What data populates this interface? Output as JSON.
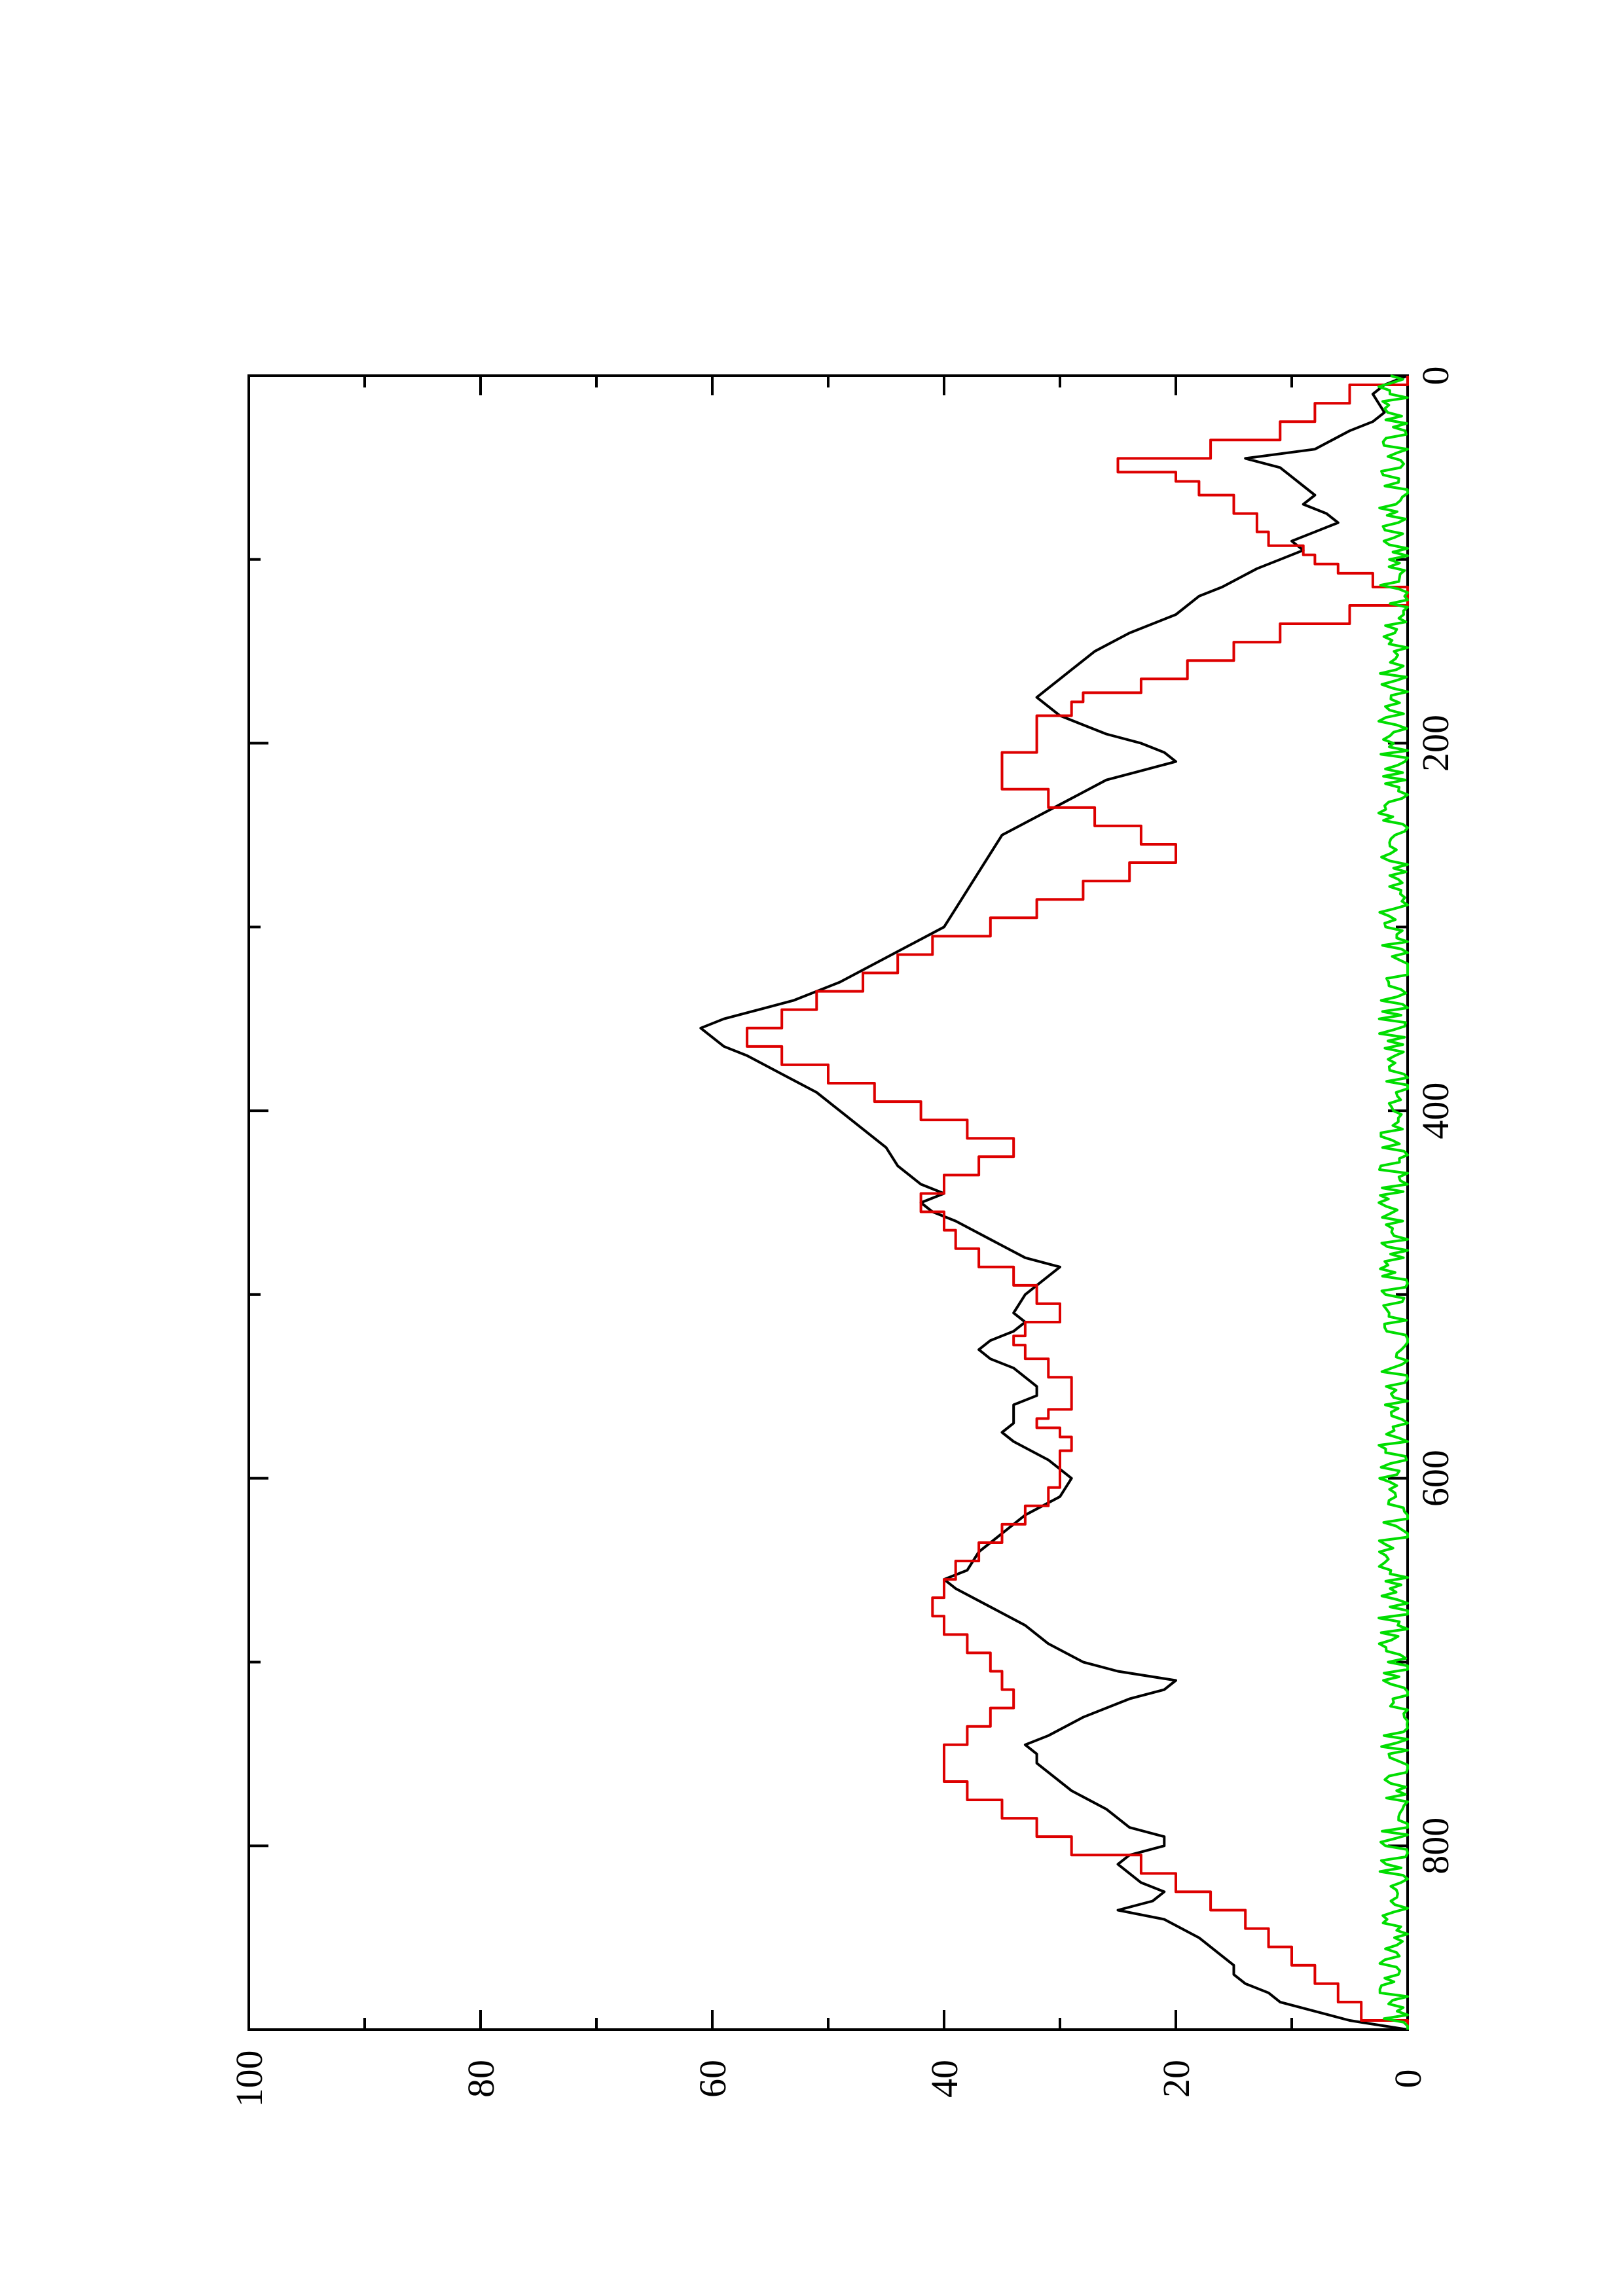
{
  "chart_data": {
    "type": "line",
    "orientation": "rotated-90-ccw",
    "title": "",
    "xlabel": "",
    "ylabel": "",
    "xlim": [
      0,
      900
    ],
    "ylim": [
      0,
      100
    ],
    "grid": false,
    "legend": "none",
    "x_ticks": [
      0,
      200,
      400,
      600,
      800
    ],
    "x_minor_ticks": [
      100,
      300,
      500,
      700
    ],
    "y_ticks": [
      0,
      20,
      40,
      60,
      80,
      100
    ],
    "y_minor_ticks": [
      10,
      30,
      50,
      70,
      90
    ],
    "series": [
      {
        "color": "#000000",
        "style": "smooth",
        "points": [
          [
            0,
            0
          ],
          [
            5,
            2
          ],
          [
            10,
            3
          ],
          [
            20,
            2
          ],
          [
            25,
            3
          ],
          [
            30,
            5
          ],
          [
            40,
            8
          ],
          [
            45,
            14
          ],
          [
            50,
            11
          ],
          [
            55,
            10
          ],
          [
            60,
            9
          ],
          [
            65,
            8
          ],
          [
            70,
            9
          ],
          [
            75,
            7
          ],
          [
            80,
            6
          ],
          [
            85,
            8
          ],
          [
            90,
            10
          ],
          [
            95,
            9
          ],
          [
            100,
            11
          ],
          [
            105,
            13
          ],
          [
            115,
            16
          ],
          [
            120,
            18
          ],
          [
            130,
            20
          ],
          [
            140,
            24
          ],
          [
            150,
            27
          ],
          [
            155,
            28
          ],
          [
            160,
            29
          ],
          [
            165,
            30
          ],
          [
            170,
            31
          ],
          [
            175,
            32
          ],
          [
            180,
            31
          ],
          [
            185,
            30
          ],
          [
            190,
            28
          ],
          [
            195,
            26
          ],
          [
            200,
            23
          ],
          [
            205,
            21
          ],
          [
            210,
            20
          ],
          [
            215,
            23
          ],
          [
            220,
            26
          ],
          [
            230,
            29
          ],
          [
            240,
            32
          ],
          [
            250,
            35
          ],
          [
            260,
            36
          ],
          [
            270,
            37
          ],
          [
            280,
            38
          ],
          [
            290,
            39
          ],
          [
            300,
            40
          ],
          [
            310,
            43
          ],
          [
            320,
            46
          ],
          [
            330,
            49
          ],
          [
            340,
            53
          ],
          [
            345,
            56
          ],
          [
            350,
            59
          ],
          [
            355,
            61
          ],
          [
            360,
            60
          ],
          [
            365,
            59
          ],
          [
            370,
            57
          ],
          [
            380,
            54
          ],
          [
            390,
            51
          ],
          [
            400,
            49
          ],
          [
            410,
            47
          ],
          [
            420,
            45
          ],
          [
            430,
            44
          ],
          [
            440,
            42
          ],
          [
            445,
            40
          ],
          [
            450,
            42
          ],
          [
            455,
            41
          ],
          [
            460,
            39
          ],
          [
            470,
            36
          ],
          [
            480,
            33
          ],
          [
            485,
            30
          ],
          [
            490,
            31
          ],
          [
            500,
            33
          ],
          [
            510,
            34
          ],
          [
            515,
            33
          ],
          [
            520,
            34
          ],
          [
            525,
            36
          ],
          [
            530,
            37
          ],
          [
            535,
            36
          ],
          [
            540,
            34
          ],
          [
            550,
            32
          ],
          [
            555,
            32
          ],
          [
            560,
            34
          ],
          [
            570,
            34
          ],
          [
            575,
            35
          ],
          [
            580,
            34
          ],
          [
            590,
            31
          ],
          [
            600,
            29
          ],
          [
            610,
            30
          ],
          [
            620,
            33
          ],
          [
            630,
            35
          ],
          [
            640,
            37
          ],
          [
            650,
            38
          ],
          [
            655,
            40
          ],
          [
            660,
            39
          ],
          [
            670,
            36
          ],
          [
            680,
            33
          ],
          [
            690,
            31
          ],
          [
            700,
            28
          ],
          [
            705,
            25
          ],
          [
            710,
            20
          ],
          [
            715,
            21
          ],
          [
            720,
            24
          ],
          [
            730,
            28
          ],
          [
            740,
            31
          ],
          [
            745,
            33
          ],
          [
            750,
            32
          ],
          [
            755,
            32
          ],
          [
            760,
            31
          ],
          [
            770,
            29
          ],
          [
            780,
            26
          ],
          [
            790,
            24
          ],
          [
            795,
            21
          ],
          [
            800,
            21
          ],
          [
            805,
            24
          ],
          [
            810,
            25
          ],
          [
            820,
            23
          ],
          [
            825,
            21
          ],
          [
            830,
            22
          ],
          [
            835,
            25
          ],
          [
            840,
            21
          ],
          [
            850,
            18
          ],
          [
            860,
            16
          ],
          [
            865,
            15
          ],
          [
            870,
            15
          ],
          [
            875,
            14
          ],
          [
            880,
            12
          ],
          [
            885,
            11
          ],
          [
            890,
            8
          ],
          [
            895,
            5
          ],
          [
            900,
            0
          ]
        ]
      },
      {
        "color": "#dd0000",
        "style": "stepped",
        "points": [
          [
            0,
            0
          ],
          [
            10,
            5
          ],
          [
            20,
            8
          ],
          [
            30,
            11
          ],
          [
            40,
            17
          ],
          [
            50,
            25
          ],
          [
            55,
            20
          ],
          [
            60,
            18
          ],
          [
            70,
            15
          ],
          [
            80,
            13
          ],
          [
            90,
            12
          ],
          [
            95,
            9
          ],
          [
            100,
            8
          ],
          [
            105,
            6
          ],
          [
            110,
            3
          ],
          [
            120,
            0
          ],
          [
            130,
            5
          ],
          [
            140,
            11
          ],
          [
            150,
            15
          ],
          [
            160,
            19
          ],
          [
            170,
            23
          ],
          [
            175,
            28
          ],
          [
            180,
            29
          ],
          [
            190,
            32
          ],
          [
            200,
            32
          ],
          [
            210,
            35
          ],
          [
            220,
            35
          ],
          [
            230,
            31
          ],
          [
            240,
            27
          ],
          [
            250,
            23
          ],
          [
            260,
            20
          ],
          [
            270,
            24
          ],
          [
            280,
            28
          ],
          [
            290,
            32
          ],
          [
            300,
            36
          ],
          [
            310,
            41
          ],
          [
            320,
            44
          ],
          [
            330,
            47
          ],
          [
            340,
            51
          ],
          [
            350,
            54
          ],
          [
            360,
            57
          ],
          [
            370,
            54
          ],
          [
            380,
            50
          ],
          [
            390,
            46
          ],
          [
            400,
            42
          ],
          [
            410,
            38
          ],
          [
            420,
            34
          ],
          [
            430,
            37
          ],
          [
            440,
            40
          ],
          [
            450,
            42
          ],
          [
            460,
            40
          ],
          [
            470,
            39
          ],
          [
            480,
            37
          ],
          [
            490,
            34
          ],
          [
            500,
            32
          ],
          [
            510,
            30
          ],
          [
            520,
            33
          ],
          [
            525,
            34
          ],
          [
            530,
            33
          ],
          [
            540,
            31
          ],
          [
            550,
            29
          ],
          [
            560,
            29
          ],
          [
            565,
            31
          ],
          [
            570,
            32
          ],
          [
            575,
            30
          ],
          [
            580,
            29
          ],
          [
            590,
            30
          ],
          [
            600,
            30
          ],
          [
            610,
            31
          ],
          [
            620,
            33
          ],
          [
            630,
            35
          ],
          [
            640,
            37
          ],
          [
            650,
            39
          ],
          [
            660,
            40
          ],
          [
            670,
            41
          ],
          [
            680,
            40
          ],
          [
            690,
            38
          ],
          [
            700,
            36
          ],
          [
            710,
            35
          ],
          [
            720,
            34
          ],
          [
            730,
            36
          ],
          [
            740,
            38
          ],
          [
            750,
            40
          ],
          [
            760,
            40
          ],
          [
            770,
            38
          ],
          [
            780,
            35
          ],
          [
            790,
            32
          ],
          [
            800,
            29
          ],
          [
            810,
            23
          ],
          [
            820,
            20
          ],
          [
            830,
            17
          ],
          [
            840,
            14
          ],
          [
            850,
            12
          ],
          [
            860,
            10
          ],
          [
            870,
            8
          ],
          [
            880,
            6
          ],
          [
            890,
            4
          ],
          [
            900,
            0
          ]
        ]
      },
      {
        "color": "#00dd00",
        "style": "noise",
        "baseline": 1,
        "amplitude": 3
      }
    ]
  }
}
